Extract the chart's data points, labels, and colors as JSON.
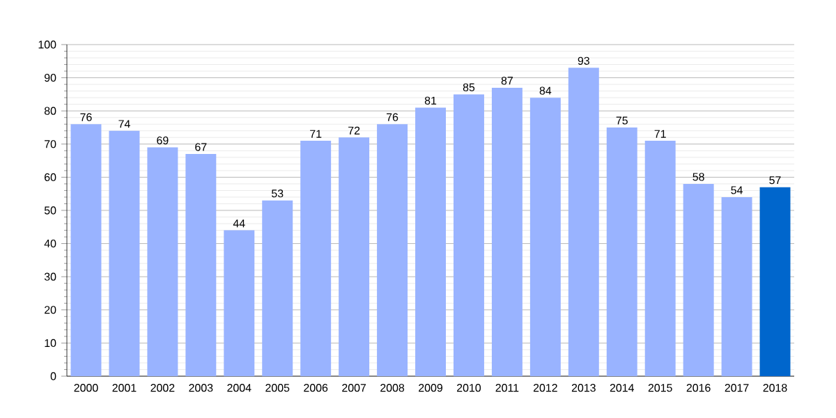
{
  "chart_data": {
    "type": "bar",
    "categories": [
      "2000",
      "2001",
      "2002",
      "2003",
      "2004",
      "2005",
      "2006",
      "2007",
      "2008",
      "2009",
      "2010",
      "2011",
      "2012",
      "2013",
      "2014",
      "2015",
      "2016",
      "2017",
      "2018"
    ],
    "values": [
      76,
      74,
      69,
      67,
      44,
      53,
      71,
      72,
      76,
      81,
      85,
      87,
      84,
      93,
      75,
      71,
      58,
      54,
      57
    ],
    "colors": [
      "#99b3ff",
      "#99b3ff",
      "#99b3ff",
      "#99b3ff",
      "#99b3ff",
      "#99b3ff",
      "#99b3ff",
      "#99b3ff",
      "#99b3ff",
      "#99b3ff",
      "#99b3ff",
      "#99b3ff",
      "#99b3ff",
      "#99b3ff",
      "#99b3ff",
      "#99b3ff",
      "#99b3ff",
      "#99b3ff",
      "#0066cc"
    ],
    "ylim": [
      0,
      100
    ],
    "yticks": [
      0,
      10,
      20,
      30,
      40,
      50,
      60,
      70,
      80,
      90,
      100
    ],
    "grid": true,
    "data_labels": true
  }
}
